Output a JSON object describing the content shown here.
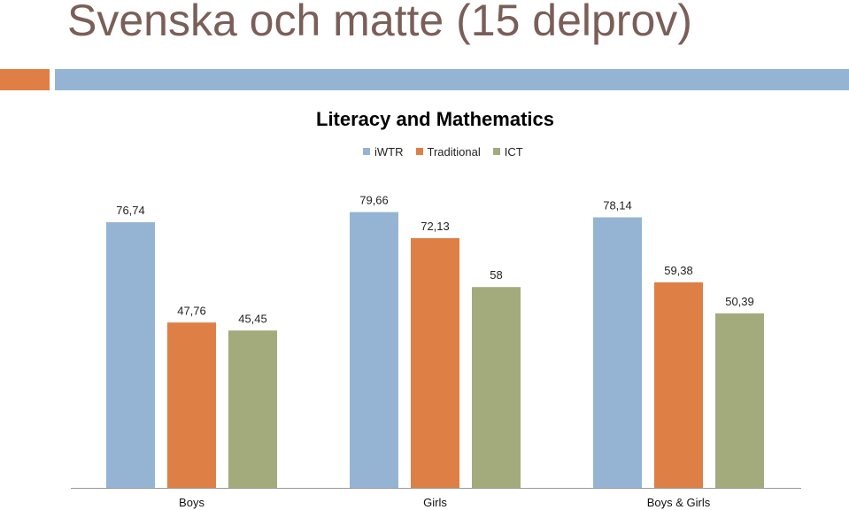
{
  "slide": {
    "title": "Svenska och matte (15 delprov)",
    "accent_colors": {
      "orange": "#e07f45",
      "blue": "#95b4d3"
    },
    "title_color": "#7a5f58"
  },
  "chart_data": {
    "type": "bar",
    "title": "Literacy and Mathematics",
    "categories": [
      "Boys",
      "Girls",
      "Boys & Girls"
    ],
    "series": [
      {
        "name": "iWTR",
        "values": [
          76.74,
          79.66,
          78.14
        ],
        "labels": [
          "76,74",
          "79,66",
          "78,14"
        ],
        "color": "#95b4d3"
      },
      {
        "name": "Traditional",
        "values": [
          47.76,
          72.13,
          59.38
        ],
        "labels": [
          "47,76",
          "72,13",
          "59,38"
        ],
        "color": "#de7f46"
      },
      {
        "name": "ICT",
        "values": [
          45.45,
          58,
          50.39
        ],
        "labels": [
          "45,45",
          "58",
          "50,39"
        ],
        "color": "#a3aa7c"
      }
    ],
    "ylim": [
      0,
      100
    ],
    "grid": false,
    "legend_position": "top"
  }
}
